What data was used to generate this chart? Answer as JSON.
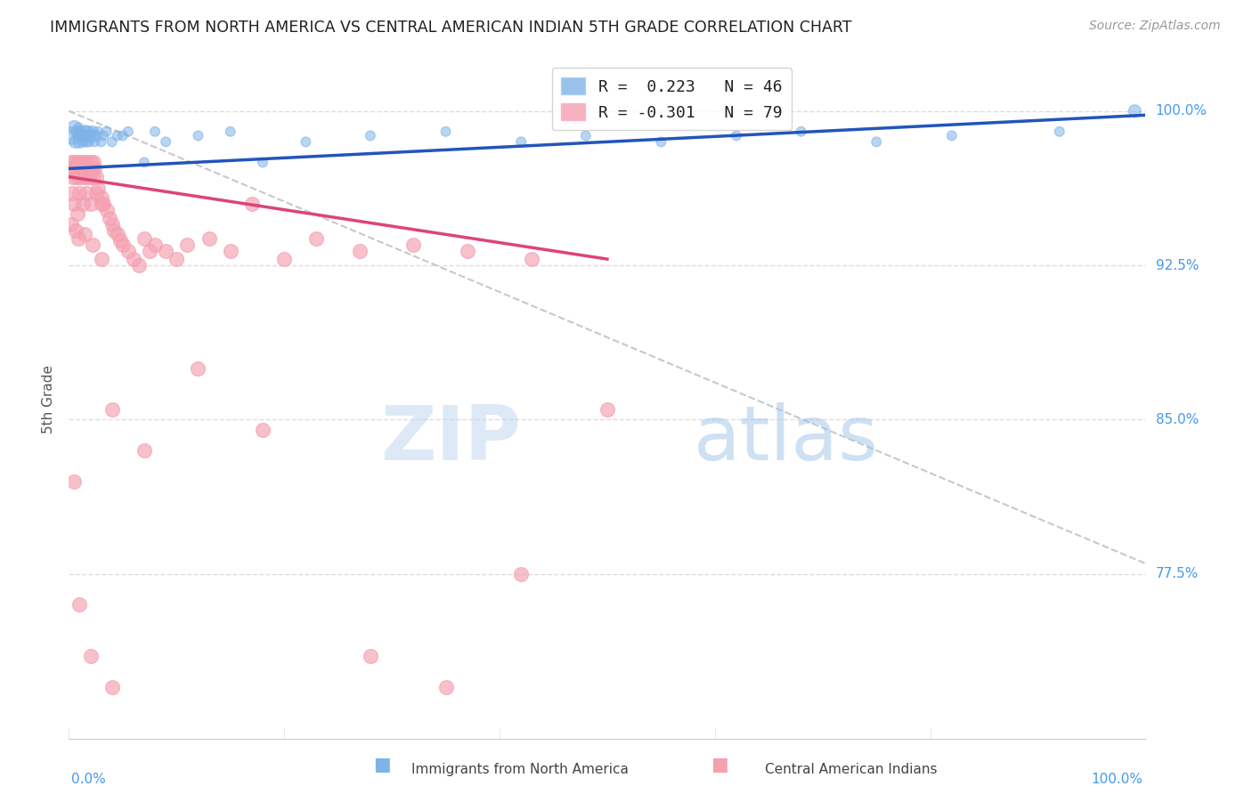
{
  "title": "IMMIGRANTS FROM NORTH AMERICA VS CENTRAL AMERICAN INDIAN 5TH GRADE CORRELATION CHART",
  "source": "Source: ZipAtlas.com",
  "ylabel": "5th Grade",
  "xlim": [
    0.0,
    1.0
  ],
  "ylim": [
    0.695,
    1.025
  ],
  "yticks": [
    0.775,
    0.85,
    0.925,
    1.0
  ],
  "ytick_labels": [
    "77.5%",
    "85.0%",
    "92.5%",
    "100.0%"
  ],
  "blue_R": 0.223,
  "blue_N": 46,
  "pink_R": -0.301,
  "pink_N": 79,
  "blue_color": "#7EB3E8",
  "pink_color": "#F4A0B0",
  "blue_line_color": "#2255BB",
  "pink_line_color": "#DD4477",
  "watermark_zip": "ZIP",
  "watermark_atlas": "atlas",
  "blue_line_x0": 0.0,
  "blue_line_y0": 0.972,
  "blue_line_x1": 1.0,
  "blue_line_y1": 0.998,
  "pink_line_x0": 0.0,
  "pink_line_y0": 0.968,
  "pink_line_x1": 0.5,
  "pink_line_y1": 0.928,
  "blue_scatter_x": [
    0.003,
    0.005,
    0.006,
    0.007,
    0.008,
    0.009,
    0.01,
    0.011,
    0.012,
    0.013,
    0.014,
    0.015,
    0.016,
    0.017,
    0.018,
    0.019,
    0.02,
    0.022,
    0.024,
    0.025,
    0.027,
    0.03,
    0.032,
    0.035,
    0.04,
    0.045,
    0.05,
    0.055,
    0.07,
    0.08,
    0.09,
    0.12,
    0.15,
    0.18,
    0.22,
    0.28,
    0.35,
    0.42,
    0.48,
    0.55,
    0.62,
    0.68,
    0.75,
    0.82,
    0.92,
    0.99
  ],
  "blue_scatter_y": [
    0.988,
    0.992,
    0.985,
    0.99,
    0.988,
    0.992,
    0.985,
    0.99,
    0.988,
    0.985,
    0.988,
    0.99,
    0.985,
    0.988,
    0.99,
    0.985,
    0.988,
    0.99,
    0.985,
    0.988,
    0.99,
    0.985,
    0.988,
    0.99,
    0.985,
    0.988,
    0.988,
    0.99,
    0.975,
    0.99,
    0.985,
    0.988,
    0.99,
    0.975,
    0.985,
    0.988,
    0.99,
    0.985,
    0.988,
    0.985,
    0.988,
    0.99,
    0.985,
    0.988,
    0.99,
    1.0
  ],
  "blue_scatter_size": [
    200,
    120,
    100,
    80,
    70,
    60,
    100,
    80,
    70,
    60,
    80,
    100,
    70,
    60,
    80,
    60,
    100,
    80,
    60,
    80,
    60,
    60,
    60,
    60,
    60,
    60,
    60,
    60,
    60,
    60,
    60,
    60,
    60,
    60,
    60,
    60,
    60,
    60,
    60,
    60,
    60,
    60,
    60,
    60,
    60,
    100
  ],
  "pink_scatter_x": [
    0.002,
    0.003,
    0.004,
    0.005,
    0.006,
    0.007,
    0.008,
    0.009,
    0.01,
    0.011,
    0.012,
    0.013,
    0.014,
    0.015,
    0.016,
    0.017,
    0.018,
    0.019,
    0.02,
    0.021,
    0.022,
    0.023,
    0.024,
    0.025,
    0.027,
    0.03,
    0.032,
    0.035,
    0.038,
    0.04,
    0.042,
    0.045,
    0.048,
    0.05,
    0.055,
    0.06,
    0.065,
    0.07,
    0.075,
    0.08,
    0.09,
    0.1,
    0.11,
    0.13,
    0.15,
    0.17,
    0.2,
    0.23,
    0.27,
    0.32,
    0.37,
    0.43,
    0.5,
    0.003,
    0.005,
    0.008,
    0.01,
    0.013,
    0.016,
    0.02,
    0.025,
    0.03,
    0.002,
    0.006,
    0.009,
    0.015,
    0.022,
    0.03,
    0.04,
    0.07,
    0.12,
    0.18,
    0.28,
    0.35,
    0.42,
    0.005,
    0.01,
    0.02,
    0.04
  ],
  "pink_scatter_y": [
    0.975,
    0.972,
    0.968,
    0.975,
    0.972,
    0.968,
    0.975,
    0.972,
    0.968,
    0.975,
    0.972,
    0.968,
    0.975,
    0.972,
    0.968,
    0.975,
    0.972,
    0.968,
    0.975,
    0.972,
    0.968,
    0.975,
    0.972,
    0.968,
    0.962,
    0.958,
    0.955,
    0.952,
    0.948,
    0.945,
    0.942,
    0.94,
    0.937,
    0.935,
    0.932,
    0.928,
    0.925,
    0.938,
    0.932,
    0.935,
    0.932,
    0.928,
    0.935,
    0.938,
    0.932,
    0.955,
    0.928,
    0.938,
    0.932,
    0.935,
    0.932,
    0.928,
    0.855,
    0.96,
    0.955,
    0.95,
    0.96,
    0.955,
    0.96,
    0.955,
    0.96,
    0.955,
    0.945,
    0.942,
    0.938,
    0.94,
    0.935,
    0.928,
    0.855,
    0.835,
    0.875,
    0.845,
    0.735,
    0.72,
    0.775,
    0.82,
    0.76,
    0.735,
    0.72
  ]
}
